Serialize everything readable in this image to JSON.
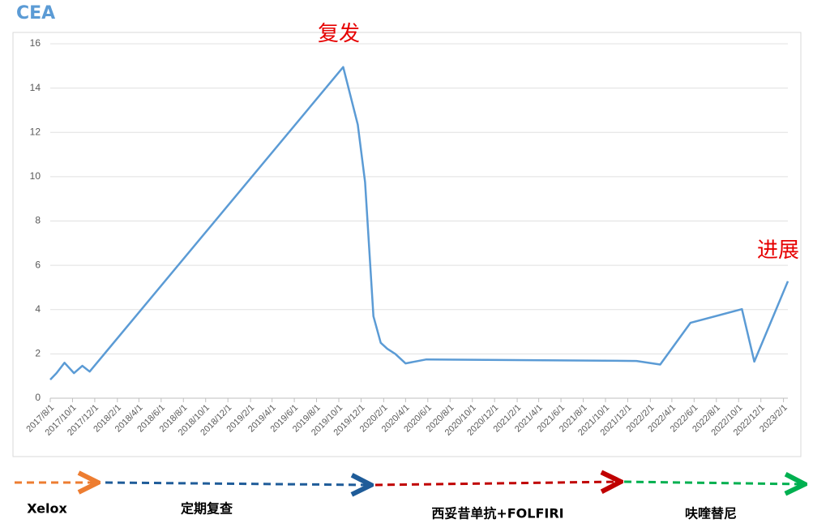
{
  "chart_data": {
    "type": "line",
    "title": "CEA",
    "x": [
      "2017/8/1",
      "2017/8/18",
      "2017/9/9",
      "2017/10/5",
      "2017/10/28",
      "2017/11/17",
      "2019/10/13",
      "2019/11/22",
      "2019/12/12",
      "2020/1/4",
      "2020/1/24",
      "2020/2/11",
      "2020/3/4",
      "2020/4/1",
      "2020/5/28",
      "2021/12/25",
      "2022/2/28",
      "2022/5/22",
      "2022/10/10",
      "2022/11/13",
      "2023/2/13"
    ],
    "values": [
      0.84,
      1.13,
      1.6,
      1.13,
      1.46,
      1.2,
      14.95,
      12.35,
      9.75,
      3.7,
      2.5,
      2.23,
      2.0,
      1.57,
      1.75,
      1.68,
      1.52,
      3.4,
      4.02,
      1.65,
      5.28
    ],
    "color": "#5b9bd5",
    "xlim": [
      "2017/8/1",
      "2023/2/13"
    ],
    "xticks": [
      "2017/8/1",
      "2017/10/1",
      "2017/12/1",
      "2018/2/1",
      "2018/4/1",
      "2018/6/1",
      "2018/8/1",
      "2018/10/1",
      "2018/12/1",
      "2019/2/1",
      "2019/4/1",
      "2019/6/1",
      "2019/8/1",
      "2019/10/1",
      "2019/12/1",
      "2020/2/1",
      "2020/4/1",
      "2020/6/1",
      "2020/8/1",
      "2020/10/1",
      "2020/12/1",
      "2021/2/1",
      "2021/4/1",
      "2021/6/1",
      "2021/8/1",
      "2021/10/1",
      "2021/12/1",
      "2022/2/1",
      "2022/4/1",
      "2022/6/1",
      "2022/8/1",
      "2022/10/1",
      "2022/12/1",
      "2023/2/1"
    ],
    "ylim": [
      0,
      16
    ],
    "yticks": [
      0,
      2,
      4,
      6,
      8,
      10,
      12,
      14,
      16
    ],
    "grid": true,
    "annotations": [
      "复发",
      "进展"
    ],
    "treatments": [
      "Xelox",
      "定期复查",
      "西妥昔单抗+FOLFIRI",
      "呋喹替尼"
    ]
  }
}
